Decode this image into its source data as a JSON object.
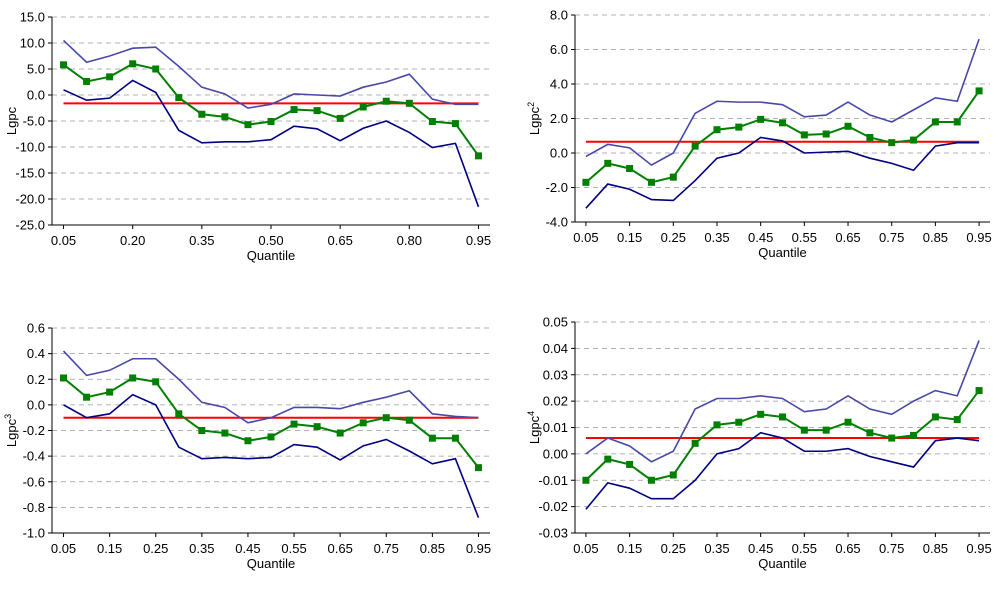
{
  "chart_data": [
    {
      "type": "line",
      "ylabel": "Lgpc",
      "xlabel": "Quantile",
      "grid": true,
      "marker": "square",
      "x": [
        0.05,
        0.1,
        0.15,
        0.2,
        0.25,
        0.3,
        0.35,
        0.4,
        0.45,
        0.5,
        0.55,
        0.6,
        0.65,
        0.7,
        0.75,
        0.8,
        0.85,
        0.9,
        0.95
      ],
      "xlim": [
        0.025,
        0.975
      ],
      "xticks": [
        0.05,
        {
          "value": 0.2,
          "label": "0.20"
        },
        0.35,
        {
          "value": 0.5,
          "label": "0.50"
        },
        0.65,
        {
          "value": 0.8,
          "label": "0.80"
        },
        0.95
      ],
      "ylim": [
        -25,
        15
      ],
      "yticks": [
        {
          "value": -25,
          "label": "-25.0"
        },
        {
          "value": -20,
          "label": "-20.0"
        },
        {
          "value": -15,
          "label": "-15.0"
        },
        {
          "value": -10,
          "label": "-10.0"
        },
        {
          "value": -5,
          "label": "-5.0"
        },
        {
          "value": 0,
          "label": "0.0"
        },
        {
          "value": 5,
          "label": "5.0"
        },
        {
          "value": 10,
          "label": "10.0"
        },
        {
          "value": 15,
          "label": "15.0"
        }
      ],
      "series": [
        {
          "color": "#4848a8",
          "values": [
            10.5,
            6.3,
            7.5,
            9.0,
            9.2,
            5.5,
            1.5,
            0.2,
            -2.5,
            -1.8,
            0.2,
            0,
            -0.2,
            1.5,
            2.5,
            4.0,
            -0.8,
            -1.8,
            -1.8
          ]
        },
        {
          "color": "#008000",
          "marker": true,
          "values": [
            5.8,
            2.6,
            3.5,
            6.0,
            5.0,
            -0.5,
            -3.7,
            -4.2,
            -5.7,
            -5.1,
            -2.8,
            -3.0,
            -4.5,
            -2.3,
            -1.2,
            -1.6,
            -5.1,
            -5.5,
            -11.7
          ]
        },
        {
          "color": "#000080",
          "values": [
            1.0,
            -1.0,
            -0.6,
            2.8,
            0.5,
            -6.8,
            -9.2,
            -9.0,
            -9.0,
            -8.6,
            -6.0,
            -6.5,
            -8.8,
            -6.4,
            -5.0,
            -7.2,
            -10.1,
            -9.3,
            -21.5
          ]
        }
      ],
      "hline": {
        "value": -1.6,
        "color": "#ff0000"
      }
    },
    {
      "type": "line",
      "ylabel": "Lgpc",
      "ylabel_sup": "2",
      "xlabel": "Quantile",
      "grid": true,
      "marker": "square",
      "x": [
        0.05,
        0.1,
        0.15,
        0.2,
        0.25,
        0.3,
        0.35,
        0.4,
        0.45,
        0.5,
        0.55,
        0.6,
        0.65,
        0.7,
        0.75,
        0.8,
        0.85,
        0.9,
        0.95
      ],
      "xlim": [
        0.025,
        0.975
      ],
      "xticks": [
        0.05,
        0.15,
        0.25,
        0.35,
        0.45,
        0.55,
        0.65,
        0.75,
        0.85,
        0.95
      ],
      "ylim": [
        -4,
        8
      ],
      "yticks": [
        {
          "value": -4,
          "label": "-4.0"
        },
        {
          "value": -2,
          "label": "-2.0"
        },
        {
          "value": 0,
          "label": "0.0"
        },
        {
          "value": 2,
          "label": "2.0"
        },
        {
          "value": 4,
          "label": "4.0"
        },
        {
          "value": 6,
          "label": "6.0"
        },
        {
          "value": 8,
          "label": "8.0"
        }
      ],
      "series": [
        {
          "color": "#4848a8",
          "values": [
            -0.2,
            0.5,
            0.3,
            -0.7,
            0,
            2.3,
            3.0,
            2.95,
            2.95,
            2.8,
            2.1,
            2.2,
            2.95,
            2.2,
            1.8,
            2.5,
            3.2,
            3.0,
            6.6
          ]
        },
        {
          "color": "#008000",
          "marker": true,
          "values": [
            -1.7,
            -0.6,
            -0.9,
            -1.7,
            -1.4,
            0.4,
            1.35,
            1.5,
            1.95,
            1.75,
            1.05,
            1.1,
            1.55,
            0.9,
            0.6,
            0.75,
            1.8,
            1.8,
            3.6
          ]
        },
        {
          "color": "#000080",
          "values": [
            -3.2,
            -1.8,
            -2.1,
            -2.7,
            -2.75,
            -1.6,
            -0.3,
            0,
            0.9,
            0.7,
            0,
            0.05,
            0.1,
            -0.3,
            -0.6,
            -1.0,
            0.4,
            0.6,
            0.6
          ]
        }
      ],
      "hline": {
        "value": 0.65,
        "color": "#ff0000"
      }
    },
    {
      "type": "line",
      "ylabel": "Lgpc",
      "ylabel_sup": "3",
      "xlabel": "Quantile",
      "grid": true,
      "marker": "square",
      "x": [
        0.05,
        0.1,
        0.15,
        0.2,
        0.25,
        0.3,
        0.35,
        0.4,
        0.45,
        0.5,
        0.55,
        0.6,
        0.65,
        0.7,
        0.75,
        0.8,
        0.85,
        0.9,
        0.95
      ],
      "xlim": [
        0.025,
        0.975
      ],
      "xticks": [
        0.05,
        0.15,
        0.25,
        0.35,
        0.45,
        0.55,
        0.65,
        0.75,
        0.85,
        0.95
      ],
      "ylim": [
        -1,
        0.6
      ],
      "yticks": [
        {
          "value": -1,
          "label": "-1.0"
        },
        -0.8,
        -0.6,
        -0.4,
        -0.2,
        {
          "value": 0,
          "label": "0.0"
        },
        0.2,
        0.4,
        0.6
      ],
      "series": [
        {
          "color": "#4848a8",
          "values": [
            0.42,
            0.23,
            0.27,
            0.36,
            0.36,
            0.2,
            0.02,
            -0.02,
            -0.14,
            -0.1,
            -0.02,
            -0.02,
            -0.03,
            0.02,
            0.06,
            0.11,
            -0.07,
            -0.09,
            -0.1
          ]
        },
        {
          "color": "#008000",
          "marker": true,
          "values": [
            0.21,
            0.06,
            0.1,
            0.21,
            0.18,
            -0.07,
            -0.2,
            -0.22,
            -0.28,
            -0.25,
            -0.15,
            -0.17,
            -0.22,
            -0.14,
            -0.1,
            -0.12,
            -0.26,
            -0.26,
            -0.49
          ]
        },
        {
          "color": "#000080",
          "values": [
            0.0,
            -0.1,
            -0.07,
            0.08,
            0.0,
            -0.33,
            -0.42,
            -0.41,
            -0.42,
            -0.41,
            -0.31,
            -0.33,
            -0.43,
            -0.32,
            -0.27,
            -0.36,
            -0.46,
            -0.42,
            -0.88
          ]
        }
      ],
      "hline": {
        "value": -0.1,
        "color": "#ff0000"
      }
    },
    {
      "type": "line",
      "ylabel": "Lgpc",
      "ylabel_sup": "4",
      "xlabel": "Quantile",
      "grid": true,
      "marker": "square",
      "x": [
        0.05,
        0.1,
        0.15,
        0.2,
        0.25,
        0.3,
        0.35,
        0.4,
        0.45,
        0.5,
        0.55,
        0.6,
        0.65,
        0.7,
        0.75,
        0.8,
        0.85,
        0.9,
        0.95
      ],
      "xlim": [
        0.025,
        0.975
      ],
      "xticks": [
        0.05,
        0.15,
        0.25,
        0.35,
        0.45,
        0.55,
        0.65,
        0.75,
        0.85,
        0.95
      ],
      "ylim": [
        -0.03,
        0.05
      ],
      "yticks": [
        -0.03,
        -0.02,
        -0.01,
        {
          "value": 0,
          "label": "0.00"
        },
        0.01,
        0.02,
        0.03,
        0.04,
        0.05
      ],
      "series": [
        {
          "color": "#4848a8",
          "values": [
            0.0,
            0.006,
            0.003,
            -0.003,
            0.001,
            0.017,
            0.021,
            0.021,
            0.022,
            0.021,
            0.016,
            0.017,
            0.022,
            0.017,
            0.015,
            0.02,
            0.024,
            0.022,
            0.043
          ]
        },
        {
          "color": "#008000",
          "marker": true,
          "values": [
            -0.01,
            -0.002,
            -0.004,
            -0.01,
            -0.008,
            0.004,
            0.011,
            0.012,
            0.015,
            0.014,
            0.009,
            0.009,
            0.012,
            0.008,
            0.006,
            0.007,
            0.014,
            0.013,
            0.024
          ]
        },
        {
          "color": "#000080",
          "values": [
            -0.021,
            -0.011,
            -0.013,
            -0.017,
            -0.017,
            -0.01,
            0.0,
            0.002,
            0.008,
            0.006,
            0.001,
            0.001,
            0.002,
            -0.001,
            -0.003,
            -0.005,
            0.005,
            0.006,
            0.005
          ]
        }
      ],
      "hline": {
        "value": 0.006,
        "color": "#ff0000"
      }
    }
  ]
}
